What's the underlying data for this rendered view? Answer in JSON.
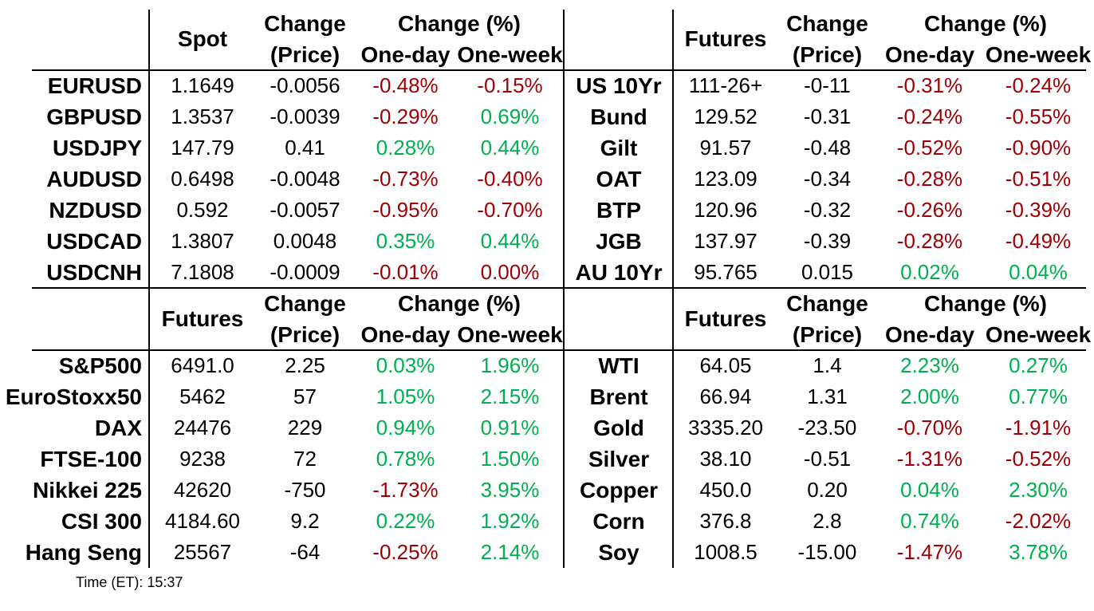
{
  "colors": {
    "positive": "#00B050",
    "negative": "#9C0006",
    "line": "#000000",
    "text": "#000000",
    "background": "#FFFFFF"
  },
  "footer": {
    "time": "Time (ET): 15:37"
  },
  "chart_data": [
    {
      "type": "table",
      "name": "fx-spot",
      "header": {
        "value_col": "Spot",
        "change_line1": "Change",
        "change_line2": "(Price)",
        "pct_title": "Change (%)",
        "one_day": "One-day",
        "one_week": "One-week"
      },
      "rows": [
        {
          "label": "EURUSD",
          "value": "1.1649",
          "change": "-0.0056",
          "one_day": "-0.48%",
          "one_day_c": "negative",
          "one_week": "-0.15%",
          "one_week_c": "negative"
        },
        {
          "label": "GBPUSD",
          "value": "1.3537",
          "change": "-0.0039",
          "one_day": "-0.29%",
          "one_day_c": "negative",
          "one_week": "0.69%",
          "one_week_c": "positive"
        },
        {
          "label": "USDJPY",
          "value": "147.79",
          "change": "0.41",
          "one_day": "0.28%",
          "one_day_c": "positive",
          "one_week": "0.44%",
          "one_week_c": "positive"
        },
        {
          "label": "AUDUSD",
          "value": "0.6498",
          "change": "-0.0048",
          "one_day": "-0.73%",
          "one_day_c": "negative",
          "one_week": "-0.40%",
          "one_week_c": "negative"
        },
        {
          "label": "NZDUSD",
          "value": "0.592",
          "change": "-0.0057",
          "one_day": "-0.95%",
          "one_day_c": "negative",
          "one_week": "-0.70%",
          "one_week_c": "negative"
        },
        {
          "label": "USDCAD",
          "value": "1.3807",
          "change": "0.0048",
          "one_day": "0.35%",
          "one_day_c": "positive",
          "one_week": "0.44%",
          "one_week_c": "positive"
        },
        {
          "label": "USDCNH",
          "value": "7.1808",
          "change": "-0.0009",
          "one_day": "-0.01%",
          "one_day_c": "negative",
          "one_week": "0.00%",
          "one_week_c": "negative"
        }
      ]
    },
    {
      "type": "table",
      "name": "bond-futures",
      "header": {
        "value_col": "Futures",
        "change_line1": "Change",
        "change_line2": "(Price)",
        "pct_title": "Change (%)",
        "one_day": "One-day",
        "one_week": "One-week"
      },
      "rows": [
        {
          "label": "US 10Yr",
          "value": "111-26+",
          "change": "-0-11",
          "one_day": "-0.31%",
          "one_day_c": "negative",
          "one_week": "-0.24%",
          "one_week_c": "negative"
        },
        {
          "label": "Bund",
          "value": "129.52",
          "change": "-0.31",
          "one_day": "-0.24%",
          "one_day_c": "negative",
          "one_week": "-0.55%",
          "one_week_c": "negative"
        },
        {
          "label": "Gilt",
          "value": "91.57",
          "change": "-0.48",
          "one_day": "-0.52%",
          "one_day_c": "negative",
          "one_week": "-0.90%",
          "one_week_c": "negative"
        },
        {
          "label": "OAT",
          "value": "123.09",
          "change": "-0.34",
          "one_day": "-0.28%",
          "one_day_c": "negative",
          "one_week": "-0.51%",
          "one_week_c": "negative"
        },
        {
          "label": "BTP",
          "value": "120.96",
          "change": "-0.32",
          "one_day": "-0.26%",
          "one_day_c": "negative",
          "one_week": "-0.39%",
          "one_week_c": "negative"
        },
        {
          "label": "JGB",
          "value": "137.97",
          "change": "-0.39",
          "one_day": "-0.28%",
          "one_day_c": "negative",
          "one_week": "-0.49%",
          "one_week_c": "negative"
        },
        {
          "label": "AU 10Yr",
          "value": "95.765",
          "change": "0.015",
          "one_day": "0.02%",
          "one_day_c": "positive",
          "one_week": "0.04%",
          "one_week_c": "positive"
        }
      ]
    },
    {
      "type": "table",
      "name": "equity-futures",
      "header": {
        "value_col": "Futures",
        "change_line1": "Change",
        "change_line2": "(Price)",
        "pct_title": "Change (%)",
        "one_day": "One-day",
        "one_week": "One-week"
      },
      "rows": [
        {
          "label": "S&P500",
          "value": "6491.0",
          "change": "2.25",
          "one_day": "0.03%",
          "one_day_c": "positive",
          "one_week": "1.96%",
          "one_week_c": "positive"
        },
        {
          "label": "EuroStoxx50",
          "value": "5462",
          "change": "57",
          "one_day": "1.05%",
          "one_day_c": "positive",
          "one_week": "2.15%",
          "one_week_c": "positive"
        },
        {
          "label": "DAX",
          "value": "24476",
          "change": "229",
          "one_day": "0.94%",
          "one_day_c": "positive",
          "one_week": "0.91%",
          "one_week_c": "positive"
        },
        {
          "label": "FTSE-100",
          "value": "9238",
          "change": "72",
          "one_day": "0.78%",
          "one_day_c": "positive",
          "one_week": "1.50%",
          "one_week_c": "positive"
        },
        {
          "label": "Nikkei 225",
          "value": "42620",
          "change": "-750",
          "one_day": "-1.73%",
          "one_day_c": "negative",
          "one_week": "3.95%",
          "one_week_c": "positive"
        },
        {
          "label": "CSI 300",
          "value": "4184.60",
          "change": "9.2",
          "one_day": "0.22%",
          "one_day_c": "positive",
          "one_week": "1.92%",
          "one_week_c": "positive"
        },
        {
          "label": "Hang Seng",
          "value": "25567",
          "change": "-64",
          "one_day": "-0.25%",
          "one_day_c": "negative",
          "one_week": "2.14%",
          "one_week_c": "positive"
        }
      ]
    },
    {
      "type": "table",
      "name": "commodity-futures",
      "header": {
        "value_col": "Futures",
        "change_line1": "Change",
        "change_line2": "(Price)",
        "pct_title": "Change (%)",
        "one_day": "One-day",
        "one_week": "One-week"
      },
      "rows": [
        {
          "label": "WTI",
          "value": "64.05",
          "change": "1.4",
          "one_day": "2.23%",
          "one_day_c": "positive",
          "one_week": "0.27%",
          "one_week_c": "positive"
        },
        {
          "label": "Brent",
          "value": "66.94",
          "change": "1.31",
          "one_day": "2.00%",
          "one_day_c": "positive",
          "one_week": "0.77%",
          "one_week_c": "positive"
        },
        {
          "label": "Gold",
          "value": "3335.20",
          "change": "-23.50",
          "one_day": "-0.70%",
          "one_day_c": "negative",
          "one_week": "-1.91%",
          "one_week_c": "negative"
        },
        {
          "label": "Silver",
          "value": "38.10",
          "change": "-0.51",
          "one_day": "-1.31%",
          "one_day_c": "negative",
          "one_week": "-0.52%",
          "one_week_c": "negative"
        },
        {
          "label": "Copper",
          "value": "450.0",
          "change": "0.20",
          "one_day": "0.04%",
          "one_day_c": "positive",
          "one_week": "2.30%",
          "one_week_c": "positive"
        },
        {
          "label": "Corn",
          "value": "376.8",
          "change": "2.8",
          "one_day": "0.74%",
          "one_day_c": "positive",
          "one_week": "-2.02%",
          "one_week_c": "negative"
        },
        {
          "label": "Soy",
          "value": "1008.5",
          "change": "-15.00",
          "one_day": "-1.47%",
          "one_day_c": "negative",
          "one_week": "3.78%",
          "one_week_c": "positive"
        }
      ]
    }
  ]
}
